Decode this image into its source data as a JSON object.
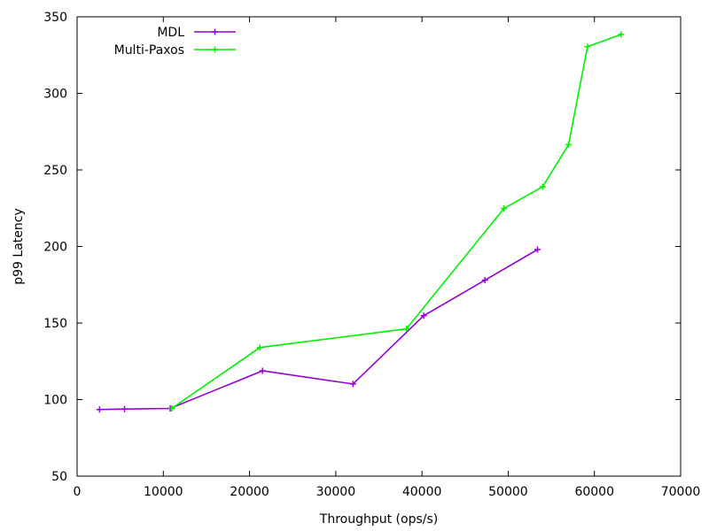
{
  "chart_data": {
    "type": "line",
    "xlabel": "Throughput (ops/s)",
    "ylabel": "p99 Latency",
    "xlim": [
      0,
      70000
    ],
    "ylim": [
      50,
      350
    ],
    "x_ticks": [
      "0",
      "10000",
      "20000",
      "30000",
      "40000",
      "50000",
      "60000",
      "70000"
    ],
    "y_ticks": [
      "50",
      "100",
      "150",
      "200",
      "250",
      "300",
      "350"
    ],
    "grid": false,
    "legend_position": "top-left",
    "series": [
      {
        "name": "MDL",
        "color": "#9400d3",
        "points": [
          [
            2600,
            93.5
          ],
          [
            5500,
            93.8
          ],
          [
            10800,
            94.2
          ],
          [
            21500,
            118.8
          ],
          [
            32000,
            110.2
          ],
          [
            40200,
            154.8
          ],
          [
            47300,
            178
          ],
          [
            53400,
            198
          ]
        ]
      },
      {
        "name": "Multi-Paxos",
        "color": "#00ee00",
        "points": [
          [
            11000,
            94.3
          ],
          [
            21200,
            134
          ],
          [
            38200,
            146.2
          ],
          [
            49500,
            224.8
          ],
          [
            54000,
            239
          ],
          [
            57000,
            266.5
          ],
          [
            59200,
            330.5
          ],
          [
            63100,
            338.5
          ]
        ]
      }
    ]
  }
}
